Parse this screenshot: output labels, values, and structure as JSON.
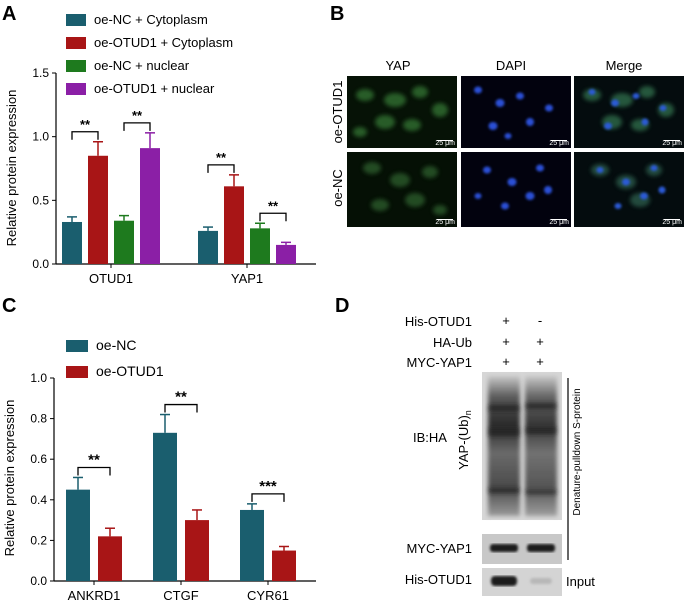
{
  "panels": {
    "A": "A",
    "B": "B",
    "C": "C",
    "D": "D"
  },
  "colors": {
    "teal": "#1a5e6e",
    "red": "#a81516",
    "green": "#1e7a1e",
    "purple": "#8b1fa6"
  },
  "chart_data": [
    {
      "type": "bar",
      "panel": "A",
      "ylabel": "Relative protein expression",
      "xlabel": "",
      "ylim": [
        0,
        1.5
      ],
      "yticks": [
        "0.0",
        "0.5",
        "1.0",
        "1.5"
      ],
      "categories": [
        "OTUD1",
        "YAP1"
      ],
      "legend_position": "top-left",
      "series": [
        {
          "name": "oe-NC + Cytoplasm",
          "color": "#1a5e6e",
          "values": [
            0.33,
            0.26
          ],
          "errors": [
            0.04,
            0.03
          ]
        },
        {
          "name": "oe-OTUD1 +  Cytoplasm",
          "color": "#a81516",
          "values": [
            0.85,
            0.61
          ],
          "errors": [
            0.11,
            0.09
          ]
        },
        {
          "name": "oe-NC + nuclear",
          "color": "#1e7a1e",
          "values": [
            0.34,
            0.28
          ],
          "errors": [
            0.04,
            0.04
          ]
        },
        {
          "name": "oe-OTUD1 + nuclear",
          "color": "#8b1fa6",
          "values": [
            0.91,
            0.15
          ],
          "errors": [
            0.12,
            0.02
          ]
        }
      ],
      "significance": [
        {
          "category": 0,
          "pair": [
            0,
            1
          ],
          "label": "**"
        },
        {
          "category": 0,
          "pair": [
            2,
            3
          ],
          "label": "**"
        },
        {
          "category": 1,
          "pair": [
            0,
            1
          ],
          "label": "**"
        },
        {
          "category": 1,
          "pair": [
            2,
            3
          ],
          "label": "**"
        }
      ]
    },
    {
      "type": "bar",
      "panel": "C",
      "ylabel": "Relative protein expression",
      "xlabel": "",
      "ylim": [
        0,
        1.0
      ],
      "yticks": [
        "0.0",
        "0.2",
        "0.4",
        "0.6",
        "0.8",
        "1.0"
      ],
      "categories": [
        "ANKRD1",
        "CTGF",
        "CYR61"
      ],
      "legend_position": "top-left",
      "series": [
        {
          "name": "oe-NC",
          "color": "#1a5e6e",
          "values": [
            0.45,
            0.73,
            0.35
          ],
          "errors": [
            0.06,
            0.09,
            0.03
          ]
        },
        {
          "name": "oe-OTUD1",
          "color": "#a81516",
          "values": [
            0.22,
            0.3,
            0.15
          ],
          "errors": [
            0.04,
            0.05,
            0.02
          ]
        }
      ],
      "significance": [
        {
          "category": 0,
          "label": "**"
        },
        {
          "category": 1,
          "label": "**"
        },
        {
          "category": 2,
          "label": "***"
        }
      ]
    }
  ],
  "microscopy": {
    "columns": [
      "YAP",
      "DAPI",
      "Merge"
    ],
    "rows": [
      "oe-OTUD1",
      "oe-NC"
    ],
    "scale_bar": "25 μm"
  },
  "western": {
    "conditions": [
      {
        "label": "His-OTUD1",
        "lanes": [
          "+",
          "-"
        ]
      },
      {
        "label": "HA-Ub",
        "lanes": [
          "+",
          "+"
        ]
      },
      {
        "label": "MYC-YAP1",
        "lanes": [
          "+",
          "+"
        ]
      }
    ],
    "ib_label": "IB:HA",
    "yap_label": "YAP-(Ub)",
    "yap_subscript": "n",
    "pulldown_label": "Denature-pulldown S-protein",
    "myc_label": "MYC-YAP1",
    "his_label": "His-OTUD1",
    "input_label": "Input"
  }
}
